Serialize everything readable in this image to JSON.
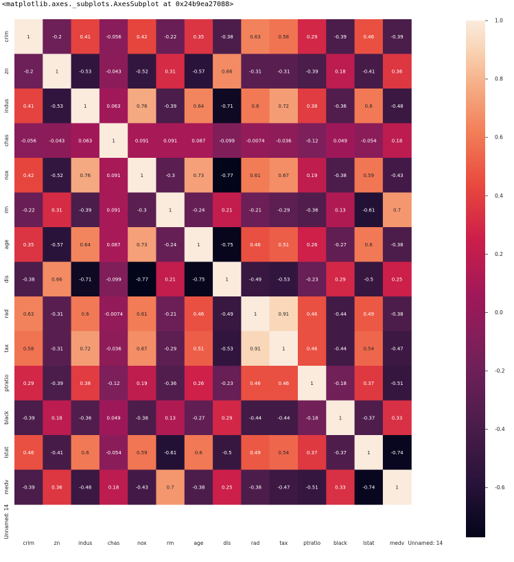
{
  "output_repr": "<matplotlib.axes._subplots.AxesSubplot at 0x24b9ea27088>",
  "chart_data": {
    "type": "heatmap",
    "colormap": "rocket",
    "x_labels": [
      "crim",
      "zn",
      "indus",
      "chas",
      "nox",
      "rm",
      "age",
      "dis",
      "rad",
      "tax",
      "ptratio",
      "black",
      "lstat",
      "medv",
      "Unnamed: 14"
    ],
    "y_labels": [
      "crim",
      "zn",
      "indus",
      "chas",
      "nox",
      "rm",
      "age",
      "dis",
      "rad",
      "tax",
      "ptratio",
      "black",
      "lstat",
      "medv",
      "Unnamed: 14"
    ],
    "matrix": [
      [
        "1",
        "-0.2",
        "0.41",
        "-0.056",
        "0.42",
        "-0.22",
        "0.35",
        "-0.38",
        "0.63",
        "0.58",
        "0.29",
        "-0.39",
        "0.46",
        "-0.39",
        null
      ],
      [
        "-0.2",
        "1",
        "-0.53",
        "-0.043",
        "-0.52",
        "0.31",
        "-0.57",
        "0.66",
        "-0.31",
        "-0.31",
        "-0.39",
        "0.18",
        "-0.41",
        "0.36",
        null
      ],
      [
        "0.41",
        "-0.53",
        "1",
        "0.063",
        "0.76",
        "-0.39",
        "0.64",
        "-0.71",
        "0.6",
        "0.72",
        "0.38",
        "-0.36",
        "0.6",
        "-0.48",
        null
      ],
      [
        "-0.056",
        "-0.043",
        "0.063",
        "1",
        "0.091",
        "0.091",
        "0.087",
        "-0.099",
        "-0.0074",
        "-0.036",
        "-0.12",
        "0.049",
        "-0.054",
        "0.18",
        null
      ],
      [
        "0.42",
        "-0.52",
        "0.76",
        "0.091",
        "1",
        "-0.3",
        "0.73",
        "-0.77",
        "0.61",
        "0.67",
        "0.19",
        "-0.38",
        "0.59",
        "-0.43",
        null
      ],
      [
        "-0.22",
        "0.31",
        "-0.39",
        "0.091",
        "-0.3",
        "1",
        "-0.24",
        "0.21",
        "-0.21",
        "-0.29",
        "-0.36",
        "0.13",
        "-0.61",
        "0.7",
        null
      ],
      [
        "0.35",
        "-0.57",
        "0.64",
        "0.087",
        "0.73",
        "-0.24",
        "1",
        "-0.75",
        "0.46",
        "0.51",
        "0.26",
        "-0.27",
        "0.6",
        "-0.38",
        null
      ],
      [
        "-0.38",
        "0.66",
        "-0.71",
        "-0.099",
        "-0.77",
        "0.21",
        "-0.75",
        "1",
        "-0.49",
        "-0.53",
        "-0.23",
        "0.29",
        "-0.5",
        "0.25",
        null
      ],
      [
        "0.63",
        "-0.31",
        "0.6",
        "-0.0074",
        "0.61",
        "-0.21",
        "0.46",
        "-0.49",
        "1",
        "0.91",
        "0.46",
        "-0.44",
        "0.49",
        "-0.38",
        null
      ],
      [
        "0.58",
        "-0.31",
        "0.72",
        "-0.036",
        "0.67",
        "-0.29",
        "0.51",
        "-0.53",
        "0.91",
        "1",
        "0.46",
        "-0.44",
        "0.54",
        "-0.47",
        null
      ],
      [
        "0.29",
        "-0.39",
        "0.38",
        "-0.12",
        "0.19",
        "-0.36",
        "0.26",
        "-0.23",
        "0.46",
        "0.46",
        "1",
        "-0.18",
        "0.37",
        "-0.51",
        null
      ],
      [
        "-0.39",
        "0.18",
        "-0.36",
        "0.049",
        "-0.38",
        "0.13",
        "-0.27",
        "0.29",
        "-0.44",
        "-0.44",
        "-0.18",
        "1",
        "-0.37",
        "0.33",
        null
      ],
      [
        "0.46",
        "-0.41",
        "0.6",
        "-0.054",
        "0.59",
        "-0.61",
        "0.6",
        "-0.5",
        "0.49",
        "0.54",
        "0.37",
        "-0.37",
        "1",
        "-0.74",
        null
      ],
      [
        "-0.39",
        "0.36",
        "-0.48",
        "0.18",
        "-0.43",
        "0.7",
        "-0.38",
        "0.25",
        "-0.38",
        "-0.47",
        "-0.51",
        "0.33",
        "-0.74",
        "1",
        null
      ],
      [
        null,
        null,
        null,
        null,
        null,
        null,
        null,
        null,
        null,
        null,
        null,
        null,
        null,
        null,
        null
      ]
    ],
    "vmin": -0.77,
    "vmax": 1.0,
    "colorbar_ticks": [
      "1.0",
      "0.8",
      "0.6",
      "0.4",
      "0.2",
      "0.0",
      "-0.2",
      "-0.4",
      "-0.6"
    ]
  }
}
